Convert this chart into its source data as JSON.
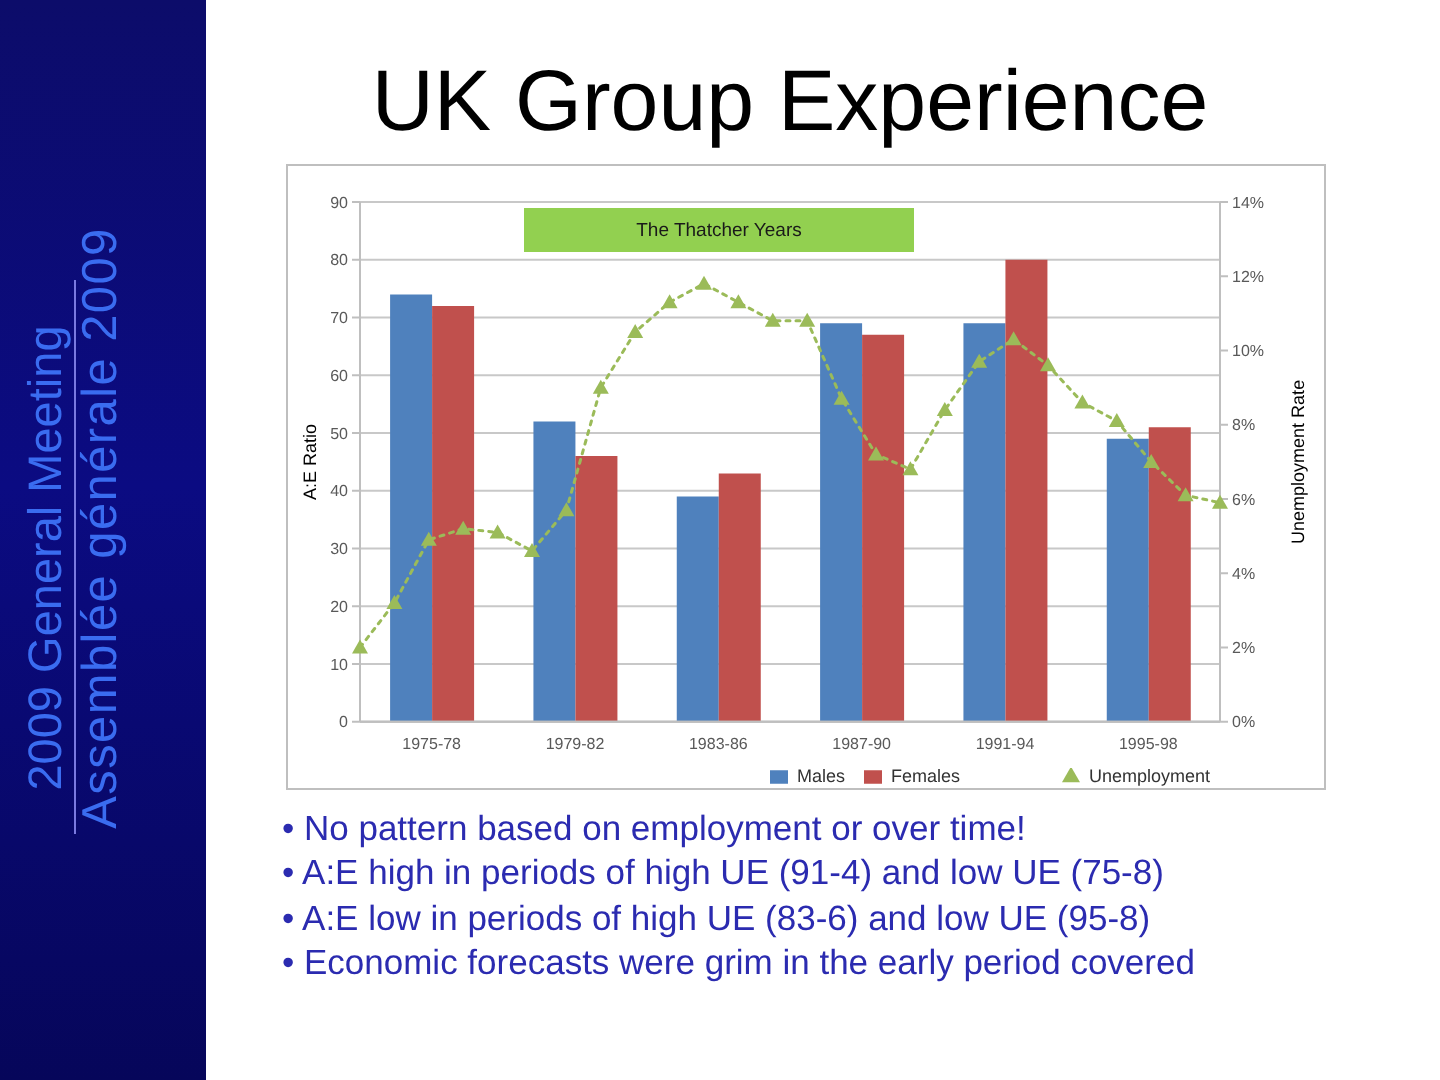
{
  "chart_data": [
    {
      "type": "bar",
      "title": "UK Group Experience",
      "ylabel": "A:E Ratio",
      "categories": [
        "1975-78",
        "1979-82",
        "1983-86",
        "1987-90",
        "1991-94",
        "1995-98"
      ],
      "series": [
        {
          "name": "Males",
          "color": "#4f81bd",
          "values": [
            74,
            52,
            39,
            69,
            69,
            49
          ]
        },
        {
          "name": "Females",
          "color": "#c0504d",
          "values": [
            72,
            46,
            43,
            67,
            80,
            51
          ]
        }
      ],
      "ylim": [
        0,
        90
      ],
      "yticks": [
        0,
        10,
        20,
        30,
        40,
        50,
        60,
        70,
        80,
        90
      ],
      "grid": "y",
      "legend": "bottom right",
      "annotations": [
        "The Thatcher Years",
        "2009 General Meeting",
        "Assemblée générale 2009",
        "• No pattern based on employment or over time!",
        "• A:E high in periods of high UE (91-4) and low UE (75-8)",
        "• A:E low in periods of high UE (83-6) and low UE (95-8)",
        "• Economic forecasts were grim in the early period covered"
      ]
    },
    {
      "type": "line",
      "ylabel": "Unemployment Rate",
      "categories": [
        null,
        null,
        null,
        null,
        null,
        null,
        null,
        null,
        null,
        null,
        null,
        null,
        null,
        null,
        null,
        null,
        null,
        null,
        null,
        null,
        null,
        null,
        null,
        null,
        null,
        null
      ],
      "series": [
        {
          "name": "Unemployment",
          "color": "#9bbb59",
          "values": [
            2.0,
            3.2,
            4.9,
            5.2,
            5.1,
            4.6,
            5.7,
            9.0,
            10.5,
            11.3,
            11.8,
            11.3,
            10.8,
            10.8,
            8.7,
            7.2,
            6.8,
            8.4,
            9.7,
            10.3,
            9.6,
            8.6,
            8.1,
            7.0,
            6.1,
            5.9
          ]
        }
      ],
      "ylim": [
        0,
        14
      ],
      "yticks": [
        {
          "value": 0,
          "label": "0%"
        },
        {
          "value": 2,
          "label": "2%"
        },
        {
          "value": 4,
          "label": "4%"
        },
        {
          "value": 6,
          "label": "6%"
        },
        {
          "value": 8,
          "label": "8%"
        },
        {
          "value": 10,
          "label": "10%"
        },
        {
          "value": 12,
          "label": "12%"
        },
        {
          "value": 14,
          "label": "14%"
        }
      ],
      "marker": "triangle",
      "line_style": "dotted",
      "legend": "bottom right"
    }
  ]
}
